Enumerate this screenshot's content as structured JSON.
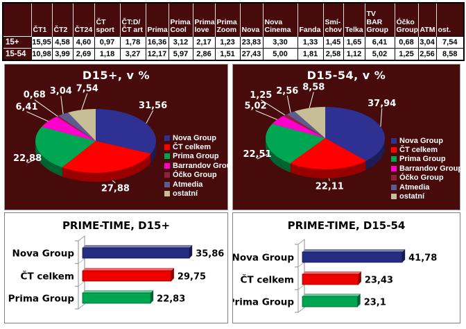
{
  "colors": {
    "panel_bg": "#470b0b",
    "table_header_bg": "#470b0b",
    "page_bg": "#ffffff"
  },
  "table": {
    "corner_label": "",
    "columns": [
      "ČT1",
      "ČT2",
      "ČT24",
      "ČT\nsport",
      "ČT:D/\nČT art",
      "Prima",
      "Prima\nCool",
      "Prima\nlove",
      "Prima\nZoom",
      "Nova",
      "Nova\nCinema",
      "Fanda",
      "Smí-\nchov",
      "Telka",
      "TV BAR\nGroup",
      "Óčko\nGroup",
      "ATM",
      "ost."
    ],
    "rows": [
      {
        "label": "15+",
        "values": [
          "15,95",
          "4,58",
          "4,60",
          "0,97",
          "1,78",
          "16,36",
          "3,12",
          "2,17",
          "1,23",
          "23,83",
          "3,30",
          "1,33",
          "1,45",
          "1,65",
          "6,41",
          "0,68",
          "3,04",
          "7,54"
        ]
      },
      {
        "label": "15-54",
        "values": [
          "10,98",
          "3,99",
          "2,69",
          "1,18",
          "3,27",
          "12,17",
          "5,97",
          "2,86",
          "1,51",
          "27,43",
          "5,00",
          "1,81",
          "2,58",
          "1,12",
          "5,02",
          "1,25",
          "2,56",
          "8,58"
        ]
      }
    ]
  },
  "legend": {
    "items": [
      {
        "label": "Nova Group",
        "color": "#2e3192"
      },
      {
        "label": "ČT celkem",
        "color": "#ff0000"
      },
      {
        "label": "Prima Group",
        "color": "#00a651"
      },
      {
        "label": "Barrandov Group",
        "color": "#ff00cc"
      },
      {
        "label": "Óčko Group",
        "color": "#8e2340"
      },
      {
        "label": "Atmedia",
        "color": "#5e5b8e"
      },
      {
        "label": "ostatní",
        "color": "#c7bd96"
      }
    ]
  },
  "chart_data": [
    {
      "type": "pie",
      "title": "D15+, v %",
      "categories": [
        "Nova Group",
        "ČT celkem",
        "Prima Group",
        "Barrandov Group",
        "Óčko Group",
        "Atmedia",
        "ostatní"
      ],
      "values": [
        31.56,
        27.88,
        22.88,
        6.41,
        0.68,
        3.04,
        7.54
      ],
      "labels": [
        "31,56",
        "27,88",
        "22,88",
        "6,41",
        "0,68",
        "3,04",
        "7,54"
      ],
      "colors": [
        "#2e3192",
        "#ff0000",
        "#00a651",
        "#ff00cc",
        "#8e2340",
        "#5e5b8e",
        "#c7bd96"
      ],
      "legend_position": "right"
    },
    {
      "type": "pie",
      "title": "D15-54, v %",
      "categories": [
        "Nova Group",
        "ČT celkem",
        "Prima Group",
        "Barrandov Group",
        "Óčko Group",
        "Atmedia",
        "ostatní"
      ],
      "values": [
        37.94,
        22.11,
        22.51,
        5.02,
        1.25,
        2.56,
        8.58
      ],
      "labels": [
        "37,94",
        "22,11",
        "22,51",
        "5,02",
        "1,25",
        "2,56",
        "8,58"
      ],
      "colors": [
        "#2e3192",
        "#ff0000",
        "#00a651",
        "#ff00cc",
        "#8e2340",
        "#5e5b8e",
        "#c7bd96"
      ],
      "legend_position": "right"
    },
    {
      "type": "bar",
      "title": "PRIME-TIME, D15+",
      "categories": [
        "Nova Group",
        "ČT celkem",
        "Prima Group"
      ],
      "values": [
        35.86,
        29.75,
        22.83
      ],
      "labels": [
        "35,86",
        "29,75",
        "22,83"
      ],
      "colors": [
        "#232c80",
        "#ee0000",
        "#00a551"
      ],
      "xlim": [
        0,
        45
      ],
      "grid": false,
      "legend_position": "none"
    },
    {
      "type": "bar",
      "title": "PRIME-TIME, D15-54",
      "categories": [
        "Nova Group",
        "ČT celkem",
        "Prima Group"
      ],
      "values": [
        41.78,
        23.43,
        23.1
      ],
      "labels": [
        "41,78",
        "23,43",
        "23,1"
      ],
      "colors": [
        "#232c80",
        "#ee0000",
        "#00a551"
      ],
      "xlim": [
        0,
        50
      ],
      "grid": false,
      "legend_position": "none"
    }
  ]
}
